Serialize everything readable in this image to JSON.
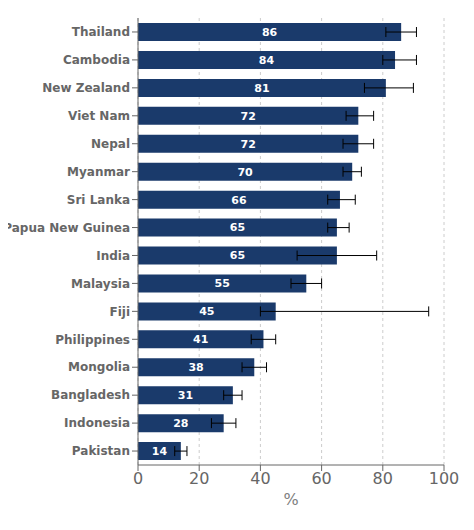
{
  "chart_data": {
    "type": "bar",
    "orientation": "horizontal",
    "categories": [
      "Thailand",
      "Cambodia",
      "New Zealand",
      "Viet Nam",
      "Nepal",
      "Myanmar",
      "Sri Lanka",
      "Papua New Guinea",
      "India",
      "Malaysia",
      "Fiji",
      "Philippines",
      "Mongolia",
      "Bangladesh",
      "Indonesia",
      "Pakistan"
    ],
    "values": [
      86,
      84,
      81,
      72,
      72,
      70,
      66,
      65,
      65,
      55,
      45,
      41,
      38,
      31,
      28,
      14
    ],
    "err_low": [
      5,
      4,
      7,
      4,
      5,
      3,
      4,
      3,
      13,
      5,
      5,
      4,
      4,
      3,
      4,
      2
    ],
    "err_high": [
      5,
      7,
      9,
      5,
      5,
      3,
      5,
      4,
      13,
      5,
      50,
      4,
      4,
      3,
      4,
      2
    ],
    "color": "#1a3a6b",
    "xlabel": "%",
    "xlim": [
      0,
      100
    ],
    "xticks": [
      0,
      20,
      40,
      60,
      80,
      100
    ],
    "grid": true,
    "data_labels": true
  }
}
